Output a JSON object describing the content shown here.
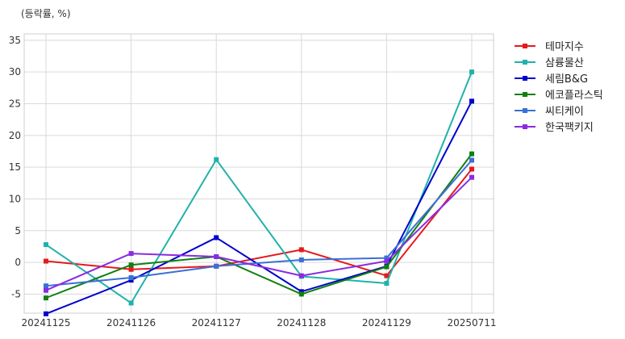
{
  "chart_data": {
    "type": "line",
    "unit_label": "(등락률, %)",
    "categories": [
      "20241125",
      "20241126",
      "20241127",
      "20241128",
      "20241129",
      "20250711"
    ],
    "ylim": [
      -8,
      36
    ],
    "yticks": [
      -5,
      0,
      5,
      10,
      15,
      20,
      25,
      30,
      35
    ],
    "grid": true,
    "legend_position": "right",
    "series": [
      {
        "name": "테마지수",
        "color": "#e41a1c",
        "values": [
          0.2,
          -1.1,
          -0.6,
          2.0,
          -2.1,
          14.7
        ]
      },
      {
        "name": "삼륭물산",
        "color": "#20b2aa",
        "values": [
          2.8,
          -6.4,
          16.2,
          -2.2,
          -3.3,
          30.0
        ]
      },
      {
        "name": "세림B&G",
        "color": "#0000cd",
        "values": [
          -8.1,
          -2.8,
          3.9,
          -4.6,
          -0.6,
          25.4
        ]
      },
      {
        "name": "에코플라스틱",
        "color": "#108010",
        "values": [
          -5.6,
          -0.4,
          0.9,
          -5.0,
          -0.7,
          17.1
        ]
      },
      {
        "name": "씨티케이",
        "color": "#3a6fd8",
        "values": [
          -3.7,
          -2.4,
          -0.6,
          0.4,
          0.7,
          16.1
        ]
      },
      {
        "name": "한국팩키지",
        "color": "#8a2be2",
        "values": [
          -4.4,
          1.4,
          0.9,
          -2.1,
          0.2,
          13.4
        ]
      }
    ]
  }
}
